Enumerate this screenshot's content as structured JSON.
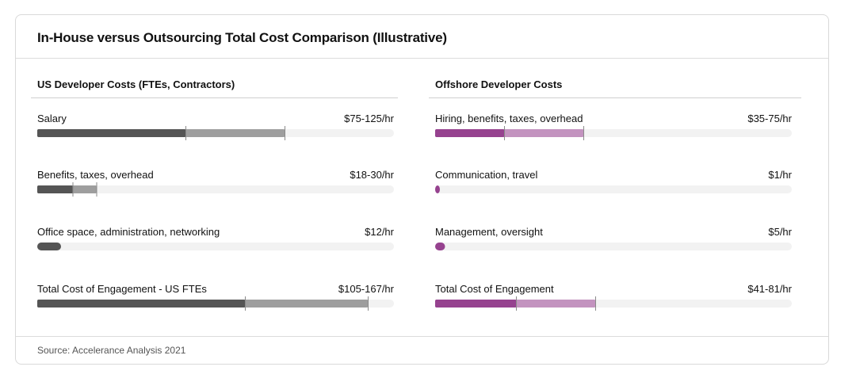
{
  "title": "In-House versus Outsourcing Total Cost Comparison (Illustrative)",
  "source": "Source: Accelerance Analysis 2021",
  "colors": {
    "us_dark": "#555555",
    "us_light": "#9e9e9e",
    "off_dark": "#96428f",
    "off_light": "#c393bf",
    "track": "#f2f2f2",
    "tick": "#8a8a8a"
  },
  "chart_data": [
    {
      "type": "bar",
      "title": "US Developer Costs (FTEs, Contractors)",
      "xlim": [
        0,
        180
      ],
      "series": [
        {
          "name": "",
          "values": []
        }
      ],
      "rows": [
        {
          "label": "Salary",
          "value_label": "$75-125/hr",
          "low": 75,
          "high": 125
        },
        {
          "label": "Benefits, taxes, overhead",
          "value_label": "$18-30/hr",
          "low": 18,
          "high": 30
        },
        {
          "label": "Office space, administration, networking",
          "value_label": "$12/hr",
          "low": 12,
          "high": 12
        },
        {
          "label": "Total Cost of Engagement - US FTEs",
          "value_label": "$105-167/hr",
          "low": 105,
          "high": 167
        }
      ]
    },
    {
      "type": "bar",
      "title": "Offshore Developer Costs",
      "xlim": [
        0,
        180
      ],
      "series": [
        {
          "name": "",
          "values": []
        }
      ],
      "rows": [
        {
          "label": "Hiring, benefits, taxes, overhead",
          "value_label": "$35-75/hr",
          "low": 35,
          "high": 75
        },
        {
          "label": "Communication, travel",
          "value_label": "$1/hr",
          "low": 1,
          "high": 1
        },
        {
          "label": "Management, oversight",
          "value_label": "$5/hr",
          "low": 5,
          "high": 5
        },
        {
          "label": "Total Cost of Engagement",
          "value_label": "$41-81/hr",
          "low": 41,
          "high": 81
        }
      ]
    }
  ]
}
